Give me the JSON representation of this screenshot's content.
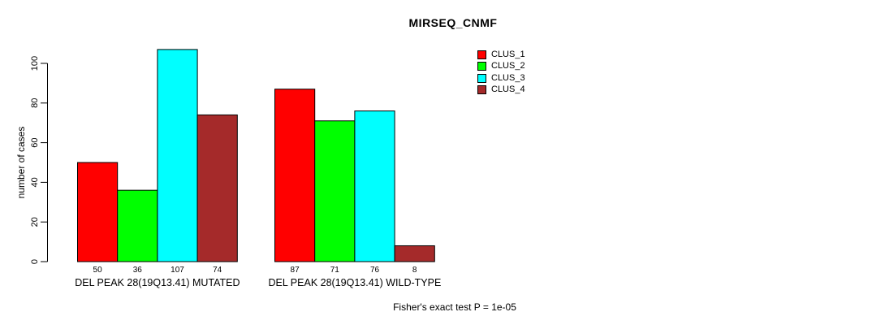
{
  "chart_data": {
    "type": "bar",
    "title": "MIRSEQ_CNMF",
    "xlabel": "",
    "ylabel": "number of cases",
    "ylim": [
      0,
      110
    ],
    "yticks": [
      0,
      20,
      40,
      60,
      80,
      100
    ],
    "grid": false,
    "legend_position": "top-right-outside",
    "bar_value_labels": true,
    "categories": [
      "DEL PEAK 28(19Q13.41) MUTATED",
      "DEL PEAK 28(19Q13.41) WILD-TYPE"
    ],
    "series": [
      {
        "name": "CLUS_1",
        "color": "#ff0000",
        "values": [
          50,
          87
        ]
      },
      {
        "name": "CLUS_2",
        "color": "#00ff00",
        "values": [
          36,
          71
        ]
      },
      {
        "name": "CLUS_3",
        "color": "#00ffff",
        "values": [
          107,
          76
        ]
      },
      {
        "name": "CLUS_4",
        "color": "#a52a2a",
        "values": [
          74,
          8
        ]
      }
    ],
    "footnote": "Fisher's exact test P = 1e-05",
    "axis_color": "#000000",
    "background_color": "#ffffff"
  }
}
